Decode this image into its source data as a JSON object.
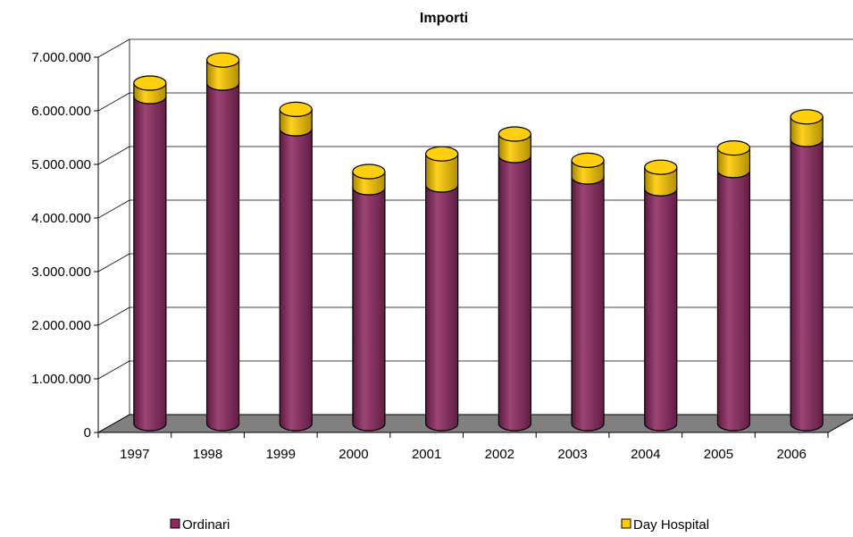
{
  "chart_data": {
    "type": "bar",
    "stacked": true,
    "style": "3d-cylinder",
    "title": "Importi",
    "categories": [
      "1997",
      "1998",
      "1999",
      "2000",
      "2001",
      "2002",
      "2003",
      "2004",
      "2005",
      "2006"
    ],
    "series": [
      {
        "name": "Ordinari",
        "color": "#8E2A62",
        "values": [
          6100000,
          6350000,
          5500000,
          4400000,
          4450000,
          5000000,
          4600000,
          4380000,
          4720000,
          5300000
        ]
      },
      {
        "name": "Day Hospital",
        "color": "#FFCC00",
        "values": [
          250000,
          430000,
          360000,
          300000,
          580000,
          400000,
          310000,
          400000,
          420000,
          420000
        ]
      }
    ],
    "ylim": [
      0,
      7000000
    ],
    "yticks": [
      0,
      1000000,
      2000000,
      3000000,
      4000000,
      5000000,
      6000000,
      7000000
    ],
    "ytick_labels": [
      "0",
      "1.000.000",
      "2.000.000",
      "3.000.000",
      "4.000.000",
      "5.000.000",
      "6.000.000",
      "7.000.000"
    ],
    "grid": true,
    "legend_position": "bottom"
  }
}
